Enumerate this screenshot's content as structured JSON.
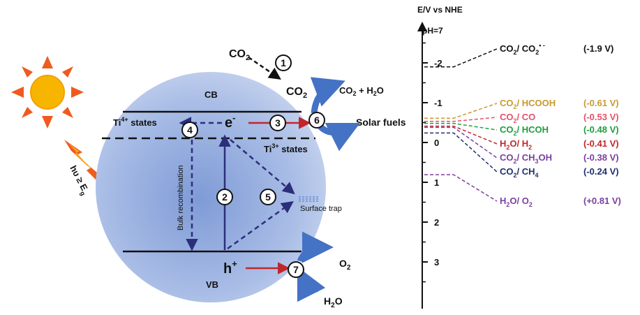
{
  "diagram": {
    "left": {
      "co2_in": "CO",
      "co2_in_sub": "2",
      "co2_surface": "CO",
      "co2_surface_sub": "2",
      "co2_h2o_a": "CO",
      "co2_h2o_sub": "2",
      "co2_h2o_b": " + H",
      "co2_h2o_sub2": "2",
      "co2_h2o_c": "O",
      "cb": "CB",
      "vb": "VB",
      "ti4_a": "Ti",
      "ti4_sup": "4+",
      "ti4_b": " states",
      "ti3_a": "Ti",
      "ti3_sup": "3+",
      "ti3_b": " states",
      "electron": "e",
      "electron_sup": "-",
      "hole": "h",
      "hole_sup": "+",
      "bulk_recombination": "Bulk recombination",
      "surface_trap": "Surface trap",
      "solar_fuels": "Solar fuels",
      "o2": "O",
      "o2_sub": "2",
      "h2o": "H",
      "h2o_sub": "2",
      "h2o_end": "O",
      "light_a": "hυ ≥ E",
      "light_sub": "g",
      "steps": [
        "1",
        "2",
        "3",
        "4",
        "5",
        "6",
        "7"
      ]
    },
    "scale": {
      "title": "E/V vs NHE",
      "ph": "pH=7",
      "ticks": [
        {
          "label": "-2",
          "value": -2
        },
        {
          "label": "-1",
          "value": -1
        },
        {
          "label": "0",
          "value": 0
        },
        {
          "label": "1",
          "value": 1
        },
        {
          "label": "2",
          "value": 2
        },
        {
          "label": "3",
          "value": 3
        }
      ],
      "couples": [
        {
          "label": "CO2/ CO2•−",
          "parts": [
            [
              "CO",
              ""
            ],
            [
              "2",
              "sub"
            ],
            [
              "/ CO",
              ""
            ],
            [
              "2",
              "sub"
            ],
            [
              "• -",
              "sup"
            ]
          ],
          "potential": "(-1.9 V)",
          "value": -1.9,
          "color": "#111111"
        },
        {
          "label": "CO2/ HCOOH",
          "parts": [
            [
              "CO",
              ""
            ],
            [
              "2",
              "sub"
            ],
            [
              "/ HCOOH",
              ""
            ]
          ],
          "potential": "(-0.61 V)",
          "value": -0.61,
          "color": "#c99a2e"
        },
        {
          "label": "CO2/ CO",
          "parts": [
            [
              "CO",
              ""
            ],
            [
              "2",
              "sub"
            ],
            [
              "/ CO",
              ""
            ]
          ],
          "potential": "(-0.53 V)",
          "value": -0.53,
          "color": "#e8506a"
        },
        {
          "label": "CO2/ HCOH",
          "parts": [
            [
              "CO",
              ""
            ],
            [
              "2",
              "sub"
            ],
            [
              "/ HCOH",
              ""
            ]
          ],
          "potential": "(-0.48 V)",
          "value": -0.48,
          "color": "#1e9e3e"
        },
        {
          "label": "H2O/ H2",
          "parts": [
            [
              "H",
              ""
            ],
            [
              "2",
              "sub"
            ],
            [
              "O/ H",
              ""
            ],
            [
              "2",
              "sub"
            ]
          ],
          "potential": "(-0.41 V)",
          "value": -0.41,
          "color": "#c0272d"
        },
        {
          "label": "CO2/ CH3OH",
          "parts": [
            [
              "CO",
              ""
            ],
            [
              "2",
              "sub"
            ],
            [
              "/ CH",
              ""
            ],
            [
              "3",
              "sub"
            ],
            [
              "OH",
              ""
            ]
          ],
          "potential": "(-0.38 V)",
          "value": -0.38,
          "color": "#7b3fa0"
        },
        {
          "label": "CO2/ CH4",
          "parts": [
            [
              "CO",
              ""
            ],
            [
              "2",
              "sub"
            ],
            [
              "/ CH",
              ""
            ],
            [
              "4",
              "sub"
            ]
          ],
          "potential": "(-0.24 V)",
          "value": -0.24,
          "color": "#1f2f6e"
        },
        {
          "label": "H2O/ O2",
          "parts": [
            [
              "H",
              ""
            ],
            [
              "2",
              "sub"
            ],
            [
              "O/ O",
              ""
            ],
            [
              "2",
              "sub"
            ]
          ],
          "potential": "(+0.81 V)",
          "value": 0.81,
          "color": "#7b3fa0"
        }
      ]
    },
    "colors": {
      "sphere": "#a9bde6",
      "band": "#111111",
      "dash": "#2b2f7a",
      "red_arrow": "#c0272d",
      "blue_arrow": "#4472c4",
      "sun": "#f7b500",
      "ray": "#f05a1e"
    }
  }
}
